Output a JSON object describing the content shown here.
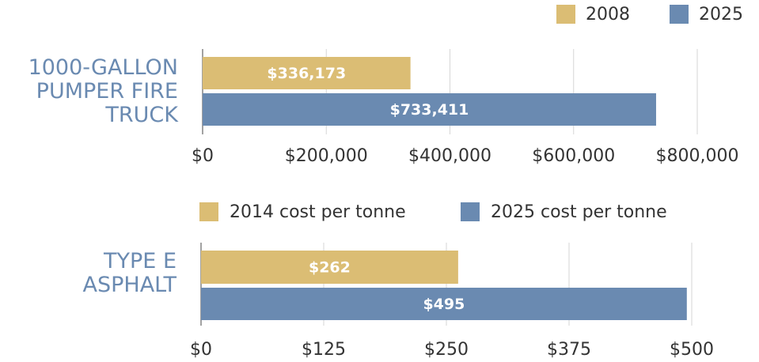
{
  "chart_data": [
    {
      "type": "bar",
      "orientation": "horizontal",
      "categories": [
        "1000-GALLON PUMPER FIRE TRUCK"
      ],
      "series": [
        {
          "name": "2008",
          "color": "#dbbd74",
          "values": [
            336173
          ],
          "value_labels": [
            "$336,173"
          ]
        },
        {
          "name": "2025",
          "color": "#6a8ab1",
          "values": [
            733411
          ],
          "value_labels": [
            "$733,411"
          ]
        }
      ],
      "xlim": [
        0,
        800000
      ],
      "xticks": [
        {
          "value": 0,
          "label": "$0"
        },
        {
          "value": 200000,
          "label": "$200,000"
        },
        {
          "value": 400000,
          "label": "$400,000"
        },
        {
          "value": 600000,
          "label": "$600,000"
        },
        {
          "value": 800000,
          "label": "$800,000"
        }
      ],
      "grid": true,
      "legend": "top-right"
    },
    {
      "type": "bar",
      "orientation": "horizontal",
      "categories": [
        "TYPE E ASPHALT"
      ],
      "series": [
        {
          "name": "2014 cost per tonne",
          "color": "#dbbd74",
          "values": [
            262
          ],
          "value_labels": [
            "$262"
          ]
        },
        {
          "name": "2025 cost per tonne",
          "color": "#6a8ab1",
          "values": [
            495
          ],
          "value_labels": [
            "$495"
          ]
        }
      ],
      "xlim": [
        0,
        500
      ],
      "xticks": [
        {
          "value": 0,
          "label": "$0"
        },
        {
          "value": 125,
          "label": "$125"
        },
        {
          "value": 250,
          "label": "$250"
        },
        {
          "value": 375,
          "label": "$375"
        },
        {
          "value": 500,
          "label": "$500"
        }
      ],
      "grid": true,
      "legend": "top"
    }
  ]
}
